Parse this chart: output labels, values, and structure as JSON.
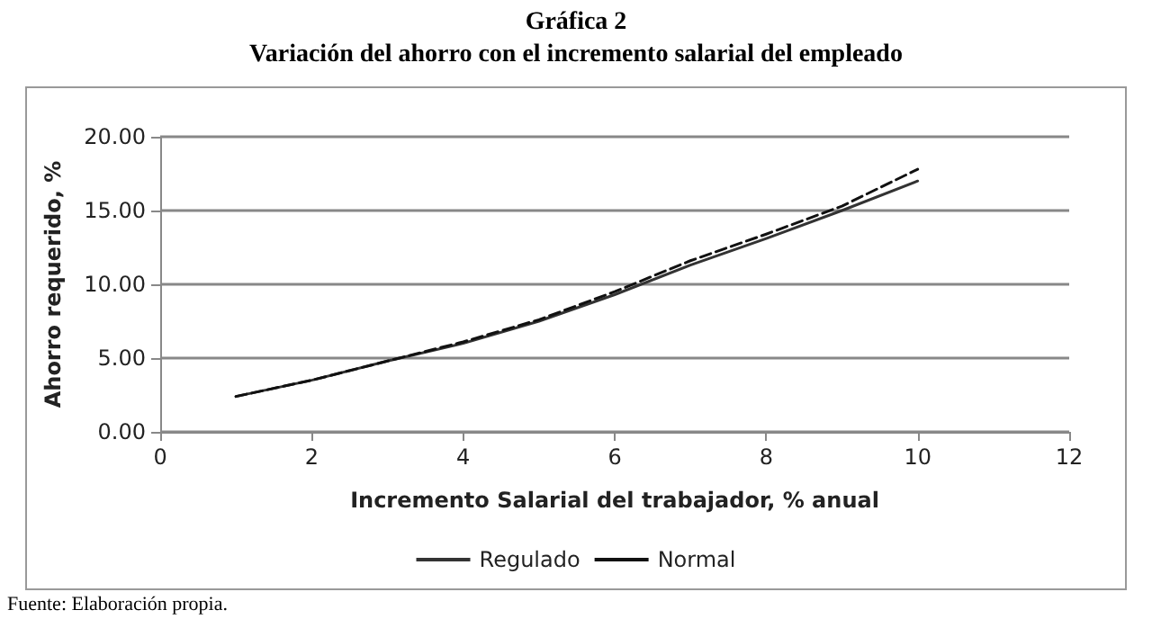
{
  "chart_data": {
    "type": "line",
    "title": "Gráfica 2",
    "subtitle": "Variación del ahorro con el incremento salarial del empleado",
    "xlabel": "Incremento Salarial del trabajador, % anual",
    "ylabel": "Ahorro requerido, %",
    "annotations": [
      "Fuente: Elaboración propia."
    ],
    "x": [
      1,
      2,
      3,
      4,
      5,
      6,
      7,
      8,
      9,
      10
    ],
    "series": [
      {
        "name": "Regulado",
        "color": "#333333",
        "line_style": "solid",
        "values": [
          2.4,
          3.5,
          4.8,
          6.0,
          7.5,
          9.3,
          11.3,
          13.1,
          15.0,
          17.0
        ]
      },
      {
        "name": "Normal",
        "color": "#111111",
        "line_style": "dashed",
        "values": [
          2.4,
          3.5,
          4.8,
          6.1,
          7.6,
          9.5,
          11.6,
          13.4,
          15.3,
          17.8
        ]
      }
    ],
    "xlim": [
      0,
      12
    ],
    "xticks": [
      0,
      2,
      4,
      6,
      8,
      10,
      12
    ],
    "ylim": [
      0,
      20
    ],
    "yticks": [
      {
        "value": 0,
        "label": "0.00"
      },
      {
        "value": 5,
        "label": "5.00"
      },
      {
        "value": 10,
        "label": "10.00"
      },
      {
        "value": 15,
        "label": "15.00"
      },
      {
        "value": 20,
        "label": "20.00"
      }
    ],
    "grid": "y",
    "legend": "bottom",
    "marker": "none"
  }
}
